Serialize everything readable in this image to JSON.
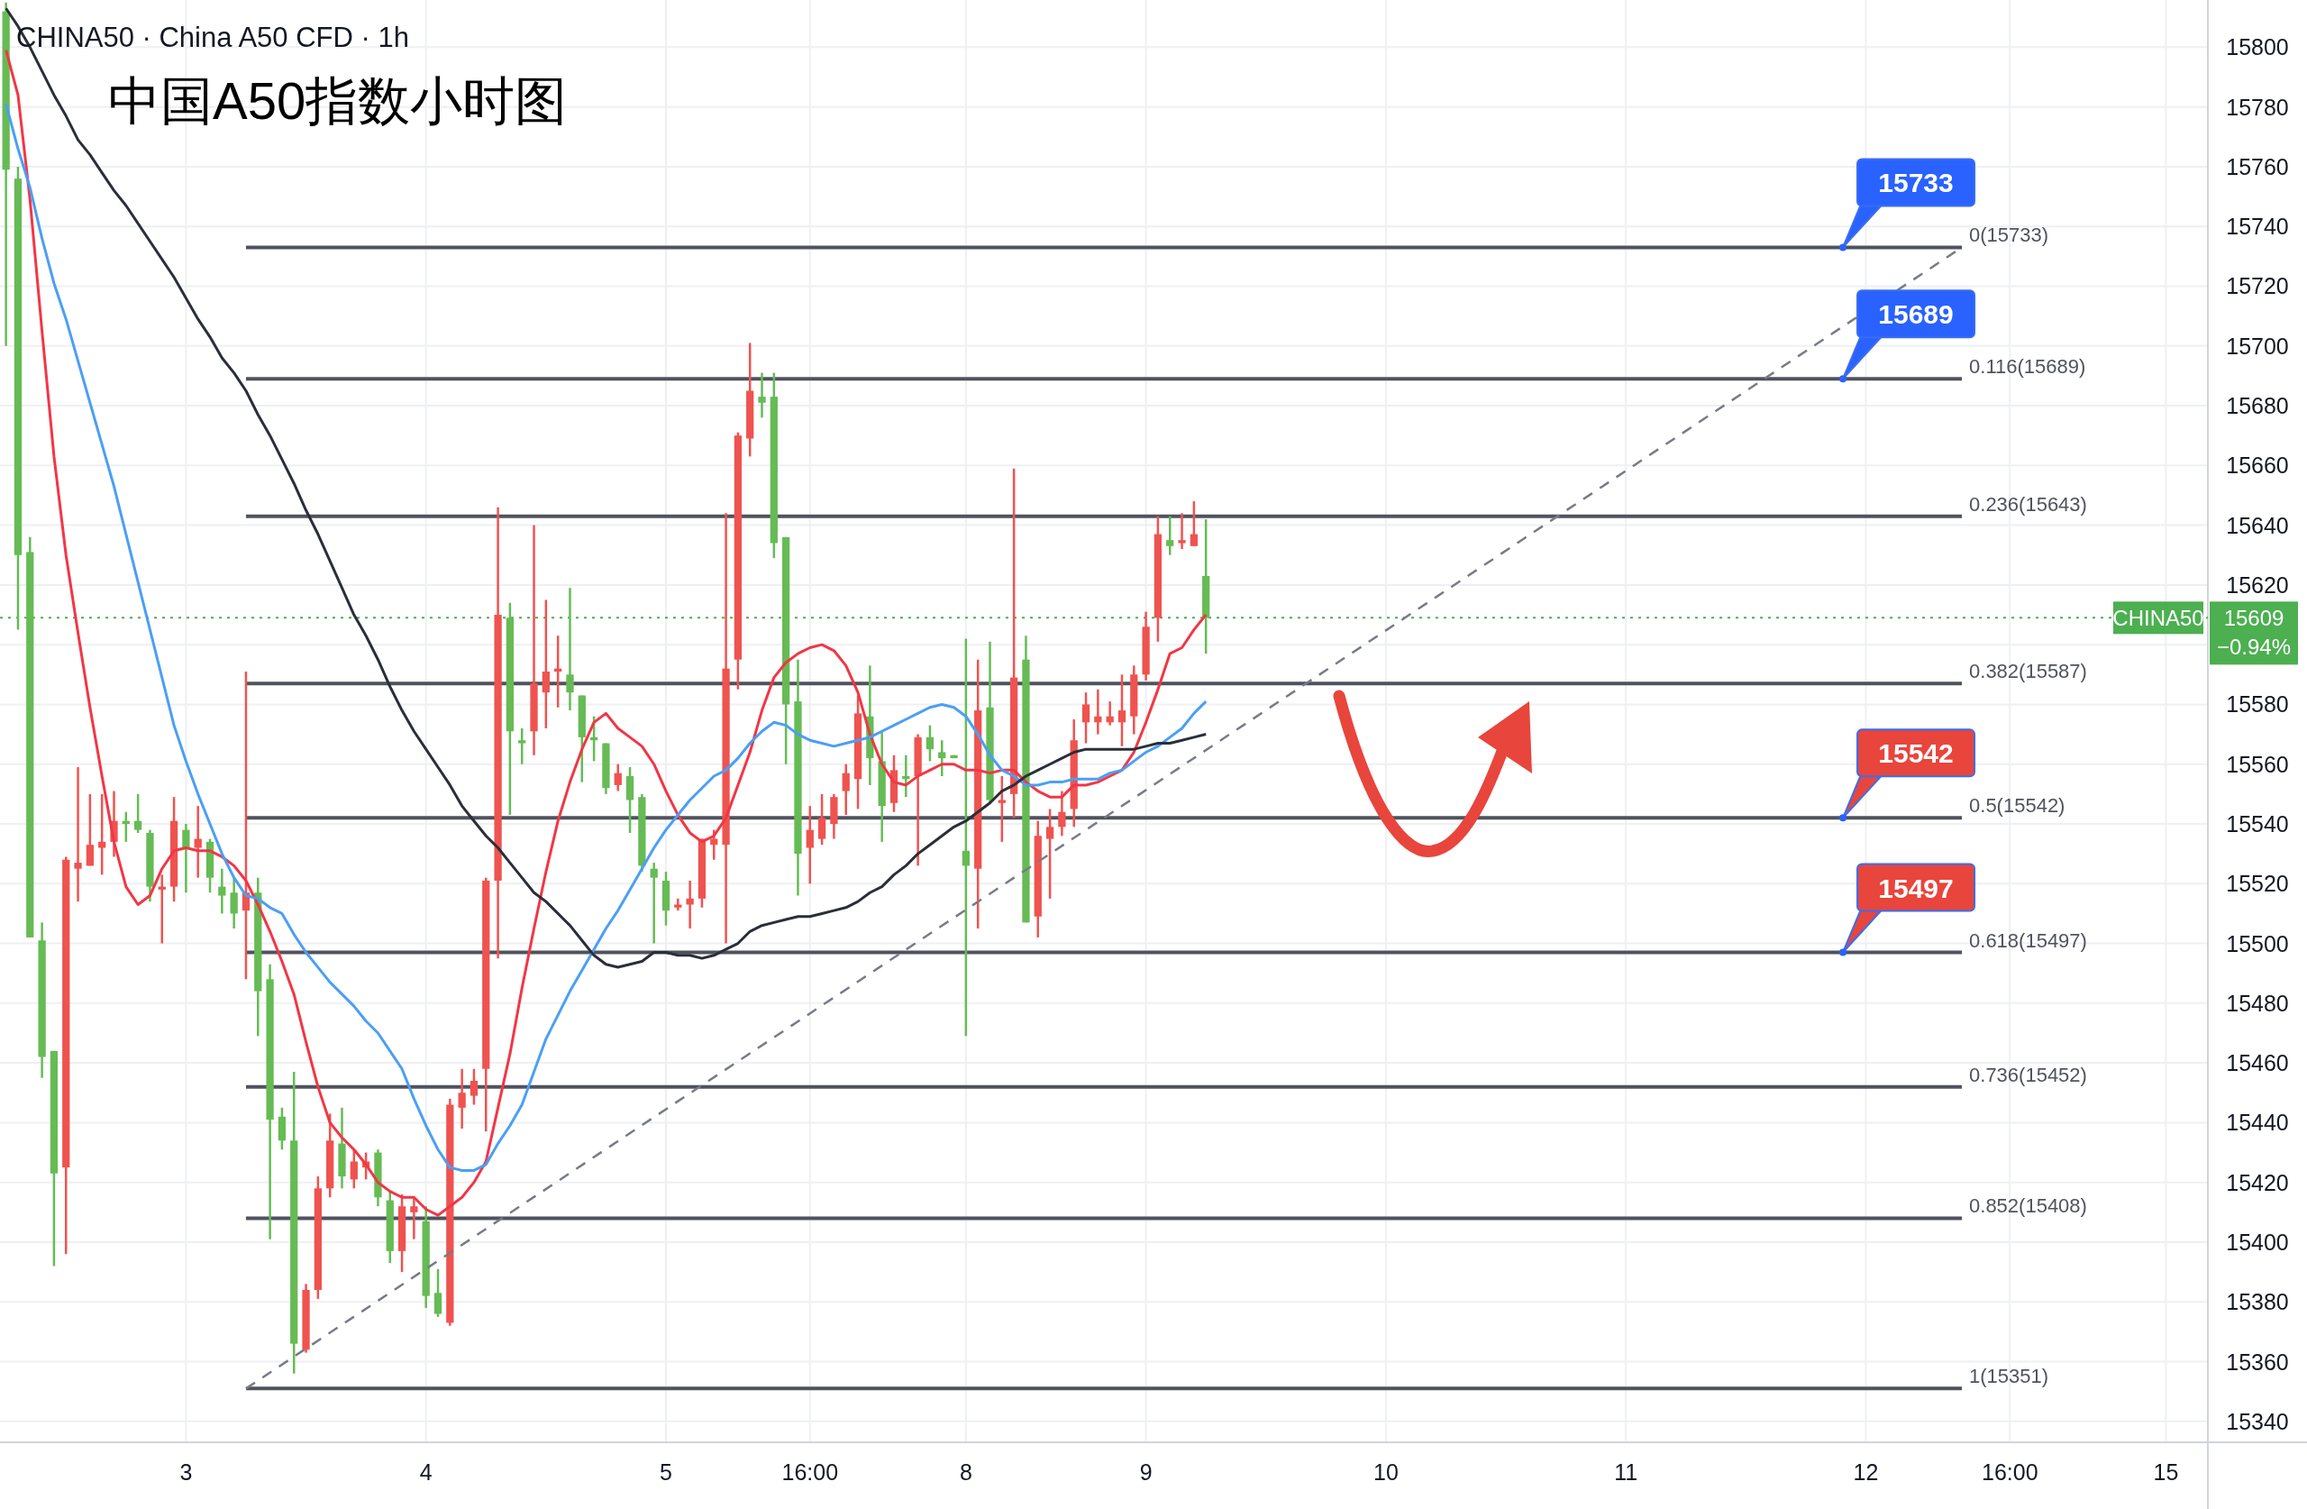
{
  "chart_data": {
    "type": "candlestick",
    "title": "中国A50指数小时图",
    "subtitle": "CHINA50 · China A50 CFD · 1h",
    "categories": [
      null,
      null,
      null,
      null,
      null,
      null,
      null,
      null,
      null,
      null,
      null,
      null,
      null,
      null,
      null,
      "3",
      null,
      null,
      null,
      null,
      null,
      null,
      null,
      null,
      null,
      null,
      null,
      null,
      null,
      null,
      null,
      null,
      null,
      null,
      null,
      "4",
      null,
      null,
      null,
      null,
      null,
      null,
      null,
      null,
      null,
      null,
      null,
      null,
      null,
      null,
      null,
      null,
      null,
      null,
      null,
      "5",
      null,
      null,
      null,
      null,
      null,
      null,
      null,
      null,
      null,
      null,
      null,
      "16:00",
      null,
      null,
      null,
      null,
      null,
      null,
      null,
      null,
      null,
      null,
      null,
      null,
      "8",
      null,
      null,
      null,
      null,
      null,
      null,
      null,
      null,
      null,
      null,
      null,
      null,
      null,
      null,
      "9",
      null,
      null,
      null,
      null,
      null,
      null,
      null,
      null,
      null,
      null,
      null,
      null,
      null,
      null,
      null,
      null,
      null,
      null,
      null,
      "10",
      null,
      null,
      null,
      null,
      null,
      null,
      null,
      null,
      null,
      null,
      null,
      null,
      null,
      null,
      null,
      null,
      null,
      null,
      null,
      "11",
      null,
      null,
      null,
      null,
      null,
      null,
      null,
      null,
      null,
      null,
      null,
      null,
      null,
      null,
      null,
      null,
      null,
      null,
      null,
      "12",
      null,
      null,
      null,
      null,
      null,
      null,
      null,
      null,
      null,
      null,
      null,
      "16:00",
      null,
      null,
      null,
      null,
      null,
      null,
      null,
      null,
      null,
      null,
      null,
      null,
      "15",
      null,
      null,
      null
    ],
    "ohlc": [
      [
        15812,
        15815,
        15700,
        15759
      ],
      [
        15756,
        15760,
        15605,
        15630
      ],
      [
        15631,
        15636,
        15502,
        15502
      ],
      [
        15501,
        15507,
        15455,
        15462
      ],
      [
        15464,
        15464,
        15392,
        15423
      ],
      [
        15425,
        15529,
        15396,
        15528
      ],
      [
        15525,
        15559,
        15514,
        15527
      ],
      [
        15526,
        15550,
        15526,
        15533
      ],
      [
        15532,
        15550,
        15523,
        15534
      ],
      [
        15534,
        15551,
        15529,
        15541
      ],
      [
        15541,
        15544,
        15534,
        15540
      ],
      [
        15541,
        15550,
        15537,
        15538
      ],
      [
        15537,
        15538,
        15514,
        15519
      ],
      [
        15518,
        15523,
        15500,
        15519
      ],
      [
        15519,
        15549,
        15514,
        15541
      ],
      [
        15538,
        15540,
        15517,
        15532
      ],
      [
        15532,
        15546,
        15522,
        15535
      ],
      [
        15534,
        15535,
        15517,
        15522
      ],
      [
        15519,
        15525,
        15510,
        15516
      ],
      [
        15517,
        15522,
        15505,
        15510
      ],
      [
        15511,
        15591,
        15488,
        15517
      ],
      [
        15517,
        15522,
        15469,
        15484
      ],
      [
        15488,
        15493,
        15401,
        15441
      ],
      [
        15442,
        15445,
        15431,
        15434
      ],
      [
        15434,
        15457,
        15356,
        15366
      ],
      [
        15364,
        15386,
        15363,
        15384
      ],
      [
        15384,
        15422,
        15381,
        15418
      ],
      [
        15418,
        15443,
        15415,
        15434
      ],
      [
        15433,
        15445,
        15418,
        15422
      ],
      [
        15421,
        15431,
        15418,
        15427
      ],
      [
        15425,
        15430,
        15421,
        15427
      ],
      [
        15430,
        15431,
        15412,
        15415
      ],
      [
        15414,
        15417,
        15393,
        15397
      ],
      [
        15397,
        15416,
        15390,
        15412
      ],
      [
        15410,
        15415,
        15401,
        15412
      ],
      [
        15407,
        15412,
        15378,
        15382
      ],
      [
        15383,
        15391,
        15375,
        15376
      ],
      [
        15373,
        15448,
        15372,
        15446
      ],
      [
        15445,
        15458,
        15438,
        15450
      ],
      [
        15449,
        15458,
        15446,
        15454
      ],
      [
        15458,
        15522,
        15437,
        15521
      ],
      [
        15521,
        15646,
        15495,
        15610
      ],
      [
        15609,
        15614,
        15543,
        15571
      ],
      [
        15568,
        15572,
        15560,
        15567
      ],
      [
        15571,
        15640,
        15563,
        15587
      ],
      [
        15584,
        15615,
        15572,
        15591
      ],
      [
        15591,
        15603,
        15579,
        15592
      ],
      [
        15590,
        15619,
        15578,
        15584
      ],
      [
        15583,
        15583,
        15554,
        15569
      ],
      [
        15569,
        15576,
        15561,
        15568
      ],
      [
        15567,
        15567,
        15550,
        15552
      ],
      [
        15553,
        15560,
        15551,
        15557
      ],
      [
        15556,
        15559,
        15537,
        15548
      ],
      [
        15549,
        15550,
        15524,
        15526
      ],
      [
        15525,
        15527,
        15500,
        15522
      ],
      [
        15521,
        15524,
        15506,
        15511
      ],
      [
        15512,
        15515,
        15511,
        15513
      ],
      [
        15513,
        15521,
        15505,
        15515
      ],
      [
        15515,
        15535,
        15512,
        15535
      ],
      [
        15533,
        15538,
        15528,
        15535
      ],
      [
        15533,
        15644,
        15500,
        15592
      ],
      [
        15595,
        15671,
        15585,
        15670
      ],
      [
        15669,
        15701,
        15663,
        15685
      ],
      [
        15683,
        15691,
        15676,
        15681
      ],
      [
        15683,
        15691,
        15629,
        15634
      ],
      [
        15636,
        15636,
        15560,
        15580
      ],
      [
        15581,
        15595,
        15516,
        15530
      ],
      [
        15532,
        15546,
        15520,
        15538
      ],
      [
        15535,
        15550,
        15533,
        15542
      ],
      [
        15540,
        15550,
        15535,
        15549
      ],
      [
        15551,
        15560,
        15543,
        15557
      ],
      [
        15555,
        15583,
        15545,
        15577
      ],
      [
        15576,
        15593,
        15553,
        15562
      ],
      [
        15561,
        15571,
        15534,
        15546
      ],
      [
        15547,
        15563,
        15544,
        15558
      ],
      [
        15556,
        15563,
        15549,
        15555
      ],
      [
        15556,
        15570,
        15526,
        15569
      ],
      [
        15569,
        15573,
        15561,
        15565
      ],
      [
        15564,
        15568,
        15556,
        15562
      ],
      [
        15563,
        15563,
        15562,
        15562
      ],
      [
        15531,
        15602,
        15469,
        15526
      ],
      [
        15525,
        15595,
        15505,
        15578
      ],
      [
        15579,
        15601,
        15547,
        15548
      ],
      [
        15547,
        15556,
        15534,
        15548
      ],
      [
        15550,
        15659,
        15542,
        15589
      ],
      [
        15595,
        15603,
        15507,
        15507
      ],
      [
        15509,
        15541,
        15502,
        15536
      ],
      [
        15535,
        15545,
        15515,
        15539
      ],
      [
        15539,
        15551,
        15536,
        15544
      ],
      [
        15545,
        15575,
        15539,
        15568
      ],
      [
        15574,
        15584,
        15567,
        15580
      ],
      [
        15574,
        15585,
        15570,
        15576
      ],
      [
        15574,
        15581,
        15573,
        15576
      ],
      [
        15574,
        15590,
        15566,
        15578
      ],
      [
        15576,
        15593,
        15570,
        15590
      ],
      [
        15590,
        15611,
        15588,
        15606
      ],
      [
        15609,
        15643,
        15601,
        15637
      ],
      [
        15635,
        15643,
        15630,
        15633
      ],
      [
        15634,
        15644,
        15632,
        15635
      ],
      [
        15633,
        15648,
        15633,
        15637
      ],
      [
        15623,
        15642,
        15597,
        15609
      ],
      null,
      null,
      null,
      null,
      null,
      null,
      null,
      null,
      null,
      null,
      null,
      null,
      null,
      null,
      null,
      null,
      null,
      null,
      null,
      null,
      null,
      null,
      null,
      null,
      null,
      null,
      null,
      null,
      null,
      null,
      null,
      null,
      null,
      null,
      null,
      null,
      null,
      null,
      null,
      null,
      null,
      null,
      null,
      null,
      null,
      null,
      null,
      null,
      null,
      null,
      null,
      null,
      null,
      null,
      null,
      null,
      null,
      null,
      null,
      null,
      null,
      null,
      null,
      null,
      null,
      null,
      null,
      null,
      null,
      null,
      null,
      null,
      null,
      null,
      null,
      null,
      null,
      null,
      null,
      null,
      null,
      null,
      null
    ],
    "series": [
      {
        "type": "line",
        "color": "#f23645",
        "values": [
          15799,
          15784,
          15749,
          15705,
          15663,
          15630,
          15604,
          15579,
          15556,
          15534,
          15519,
          15513,
          15516,
          15525,
          15531,
          15532,
          15531,
          15531,
          15529,
          15526,
          15521,
          15513,
          15504,
          15494,
          15483,
          15467,
          15452,
          15440,
          15435,
          15431,
          15426,
          15420,
          15417,
          15415,
          15415,
          15411,
          15409,
          15412,
          15415,
          15420,
          15427,
          15445,
          15463,
          15485,
          15505,
          15524,
          15541,
          15554,
          15565,
          15574,
          15577,
          15572,
          15569,
          15566,
          15560,
          15551,
          15543,
          15537,
          15534,
          15536,
          15542,
          15553,
          15564,
          15578,
          15589,
          15594,
          15597,
          15599,
          15600,
          15598,
          15593,
          15584,
          15570,
          15560,
          15554,
          15553,
          15556,
          15558,
          15560,
          15560,
          15558,
          15558,
          15557,
          15558,
          15558,
          15554,
          15551,
          15549,
          15549,
          15553,
          15553,
          15554,
          15556,
          15558,
          15564,
          15574,
          15585,
          15597,
          15599,
          15605,
          15610,
          null,
          null,
          null,
          null,
          null,
          null,
          null,
          null,
          null,
          null,
          null,
          null,
          null,
          null,
          null,
          null,
          null,
          null,
          null,
          null,
          null,
          null,
          null,
          null,
          null,
          null,
          null,
          null,
          null,
          null,
          null,
          null,
          null,
          null,
          null,
          null,
          null,
          null,
          null,
          null,
          null,
          null,
          null,
          null,
          null,
          null,
          null,
          null,
          null,
          null,
          null,
          null,
          null,
          null,
          null,
          null,
          null,
          null,
          null,
          null,
          null,
          null,
          null,
          null,
          null,
          null,
          null,
          null,
          null,
          null,
          null,
          null,
          null,
          null,
          null,
          null,
          null,
          null,
          null,
          null,
          null,
          null,
          null
        ]
      },
      {
        "type": "line",
        "color": "#4a9ff5",
        "values": [
          15781,
          15766,
          15753,
          15736,
          15721,
          15709,
          15695,
          15681,
          15667,
          15653,
          15637,
          15621,
          15605,
          15589,
          15573,
          15561,
          15550,
          15540,
          15530,
          15522,
          15516,
          15515,
          15512,
          15510,
          15503,
          15497,
          15492,
          15487,
          15483,
          15479,
          15474,
          15470,
          15464,
          15458,
          15448,
          15439,
          15431,
          15425,
          15424,
          15424,
          15426,
          15433,
          15439,
          15446,
          15457,
          15468,
          15476,
          15484,
          15491,
          15498,
          15505,
          15511,
          15518,
          15525,
          15532,
          15538,
          15543,
          15548,
          15552,
          15556,
          15558,
          15562,
          15567,
          15571,
          15574,
          15573,
          15570,
          15568,
          15567,
          15566,
          15567,
          15568,
          15569,
          15571,
          15573,
          15575,
          15577,
          15579,
          15580,
          15579,
          15576,
          15570,
          15563,
          15558,
          15556,
          15553,
          15553,
          15554,
          15554,
          15555,
          15555,
          15555,
          15557,
          15558,
          15561,
          15564,
          15566,
          15569,
          15572,
          15577,
          15581,
          null,
          null,
          null,
          null,
          null,
          null,
          null,
          null,
          null,
          null,
          null,
          null,
          null,
          null,
          null,
          null,
          null,
          null,
          null,
          null,
          null,
          null,
          null,
          null,
          null,
          null,
          null,
          null,
          null,
          null,
          null,
          null,
          null,
          null,
          null,
          null,
          null,
          null,
          null,
          null,
          null,
          null,
          null,
          null,
          null,
          null,
          null,
          null,
          null,
          null,
          null,
          null,
          null,
          null,
          null,
          null,
          null,
          null,
          null,
          null,
          null,
          null,
          null,
          null,
          null,
          null,
          null,
          null,
          null,
          null,
          null,
          null,
          null,
          null,
          null,
          null,
          null,
          null,
          null,
          null,
          null,
          null,
          null
        ]
      },
      {
        "type": "line",
        "color": "#2a2e39",
        "values": [
          15813,
          15807,
          15800,
          15792,
          15784,
          15777,
          15769,
          15764,
          15758,
          15752,
          15747,
          15741,
          15735,
          15729,
          15723,
          15716,
          15709,
          15703,
          15696,
          15691,
          15685,
          15677,
          15670,
          15662,
          15654,
          15645,
          15637,
          15628,
          15619,
          15610,
          15603,
          15595,
          15586,
          15578,
          15571,
          15565,
          15559,
          15553,
          15546,
          15541,
          15536,
          15532,
          15527,
          15522,
          15517,
          15514,
          15510,
          15506,
          15501,
          15496,
          15493,
          15492,
          15493,
          15494,
          15497,
          15497,
          15496,
          15496,
          15495,
          15496,
          15498,
          15500,
          15504,
          15506,
          15507,
          15508,
          15509,
          15509,
          15510,
          15511,
          15512,
          15514,
          15517,
          15519,
          15523,
          15526,
          15530,
          15533,
          15536,
          15539,
          15541,
          15544,
          15547,
          15551,
          15553,
          15556,
          15558,
          15560,
          15562,
          15564,
          15565,
          15565,
          15565,
          15565,
          15565,
          15566,
          15567,
          15567,
          15568,
          15569,
          15570,
          null,
          null,
          null,
          null,
          null,
          null,
          null,
          null,
          null,
          null,
          null,
          null,
          null,
          null,
          null,
          null,
          null,
          null,
          null,
          null,
          null,
          null,
          null,
          null,
          null,
          null,
          null,
          null,
          null,
          null,
          null,
          null,
          null,
          null,
          null,
          null,
          null,
          null,
          null,
          null,
          null,
          null,
          null,
          null,
          null,
          null,
          null,
          null,
          null,
          null,
          null,
          null,
          null,
          null,
          null,
          null,
          null,
          null,
          null,
          null,
          null,
          null,
          null,
          null,
          null,
          null,
          null,
          null,
          null,
          null,
          null,
          null,
          null,
          null,
          null,
          null,
          null,
          null,
          null,
          null,
          null,
          null,
          null
        ]
      },
      {
        "type": "line",
        "color": "#787b86",
        "line_style": "dashed",
        "values": [
          null,
          null,
          null,
          null,
          null,
          null,
          null,
          null,
          null,
          null,
          null,
          null,
          null,
          null,
          null,
          null,
          null,
          null,
          null,
          null,
          15351,
          null,
          null,
          null,
          null,
          null,
          null,
          null,
          null,
          null,
          null,
          null,
          null,
          null,
          null,
          null,
          null,
          null,
          null,
          null,
          null,
          null,
          null,
          null,
          null,
          null,
          null,
          null,
          null,
          null,
          null,
          null,
          null,
          null,
          null,
          null,
          null,
          null,
          null,
          null,
          null,
          null,
          null,
          null,
          null,
          null,
          null,
          null,
          null,
          null,
          null,
          null,
          null,
          null,
          null,
          null,
          null,
          null,
          null,
          null,
          null,
          null,
          null,
          null,
          null,
          null,
          null,
          null,
          null,
          null,
          null,
          null,
          null,
          null,
          null,
          null,
          null,
          null,
          null,
          null,
          null,
          null,
          null,
          null,
          null,
          null,
          null,
          null,
          null,
          null,
          null,
          null,
          null,
          null,
          null,
          null,
          null,
          null,
          null,
          null,
          null,
          null,
          null,
          null,
          null,
          null,
          null,
          null,
          null,
          null,
          null,
          null,
          null,
          null,
          null,
          null,
          null,
          null,
          null,
          null,
          null,
          null,
          null,
          null,
          null,
          null,
          null,
          null,
          null,
          null,
          null,
          null,
          null,
          null,
          null,
          null,
          null,
          null,
          null,
          null,
          null,
          null,
          null,
          15733,
          null,
          null,
          null,
          null,
          null,
          null,
          null,
          null,
          null,
          null,
          null,
          null,
          null,
          null,
          null,
          null,
          null,
          null,
          null,
          null
        ]
      }
    ],
    "ylim": [
      15333,
      15815.8
    ],
    "yticks": [
      15340,
      15360,
      15380,
      15400,
      15420,
      15440,
      15460,
      15480,
      15500,
      15520,
      15540,
      15560,
      15580,
      {
        "value": 15600,
        "label": null
      },
      15620,
      15640,
      15660,
      15680,
      15700,
      15720,
      15740,
      15760,
      15780,
      15800
    ],
    "grid": true,
    "ref_lines": [
      {
        "axis": "y",
        "value": 15733,
        "label": "0(15733)",
        "color": "#50535e"
      },
      {
        "axis": "y",
        "value": 15689,
        "label": "0.116(15689)",
        "color": "#50535e"
      },
      {
        "axis": "y",
        "value": 15643,
        "label": "0.236(15643)",
        "color": "#50535e"
      },
      {
        "axis": "y",
        "value": 15587,
        "label": "0.382(15587)",
        "color": "#50535e"
      },
      {
        "axis": "y",
        "value": 15542,
        "label": "0.5(15542)",
        "color": "#50535e"
      },
      {
        "axis": "y",
        "value": 15497,
        "label": "0.618(15497)",
        "color": "#50535e"
      },
      {
        "axis": "y",
        "value": 15452,
        "label": "0.736(15452)",
        "color": "#50535e"
      },
      {
        "axis": "y",
        "value": 15408,
        "label": "0.852(15408)",
        "color": "#50535e"
      },
      {
        "axis": "y",
        "value": 15351,
        "label": "1(15351)",
        "color": "#50535e"
      },
      {
        "axis": "y",
        "value": 15609,
        "label": "CHINA50",
        "color": "#4caf50",
        "line_style": "dotted"
      }
    ],
    "annotations": [
      {
        "text": "15733",
        "y": 15733
      },
      {
        "text": "15689",
        "y": 15689
      },
      {
        "text": "15542",
        "y": 15542
      },
      {
        "text": "15497",
        "y": 15497
      },
      "15609",
      "−0.94%"
    ]
  }
}
